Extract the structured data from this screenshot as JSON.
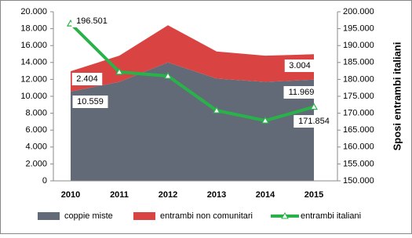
{
  "chart_data": {
    "type": "area-line",
    "categories": [
      "2010",
      "2011",
      "2012",
      "2013",
      "2014",
      "2015"
    ],
    "series": [
      {
        "name": "coppie miste",
        "color": "#626a78",
        "stacked": true,
        "values": [
          10559,
          11700,
          14000,
          12100,
          11700,
          11969
        ],
        "value_labels": [
          "10.559",
          null,
          null,
          null,
          null,
          "11.969"
        ]
      },
      {
        "name": "entrambi non comunitari",
        "color": "#d94442",
        "stacked": true,
        "values": [
          2404,
          3100,
          4400,
          3200,
          3100,
          3004
        ],
        "value_labels": [
          "2.404",
          null,
          null,
          null,
          null,
          "3.004"
        ]
      },
      {
        "name": "entrambi italiani",
        "color": "#2ab24a",
        "axis": "y2",
        "line": true,
        "values": [
          196501,
          182200,
          181000,
          170800,
          167800,
          171854
        ],
        "value_labels": [
          "196.501",
          null,
          null,
          null,
          null,
          "171.854"
        ]
      }
    ],
    "ylim": [
      0,
      20000
    ],
    "yticks": [
      {
        "value": 0,
        "label": "0"
      },
      {
        "value": 2000,
        "label": "2.000"
      },
      {
        "value": 4000,
        "label": "4.000"
      },
      {
        "value": 6000,
        "label": "6.000"
      },
      {
        "value": 8000,
        "label": "8.000"
      },
      {
        "value": 10000,
        "label": "10.000"
      },
      {
        "value": 12000,
        "label": "12.000"
      },
      {
        "value": 14000,
        "label": "14.000"
      },
      {
        "value": 16000,
        "label": "16.000"
      },
      {
        "value": 18000,
        "label": "18.000"
      },
      {
        "value": 20000,
        "label": "20.000"
      }
    ],
    "y2lim": [
      150000,
      200000
    ],
    "y2ticks": [
      {
        "value": 150000,
        "label": "150.000"
      },
      {
        "value": 155000,
        "label": "155.000"
      },
      {
        "value": 160000,
        "label": "160.000"
      },
      {
        "value": 165000,
        "label": "165.000"
      },
      {
        "value": 170000,
        "label": "170.000"
      },
      {
        "value": 175000,
        "label": "175.000"
      },
      {
        "value": 180000,
        "label": "180.000"
      },
      {
        "value": 185000,
        "label": "185.000"
      },
      {
        "value": 190000,
        "label": "190.000"
      },
      {
        "value": 195000,
        "label": "195.000"
      },
      {
        "value": 200000,
        "label": "200.000"
      }
    ],
    "y2label": "Sposi entrambi italiani"
  }
}
